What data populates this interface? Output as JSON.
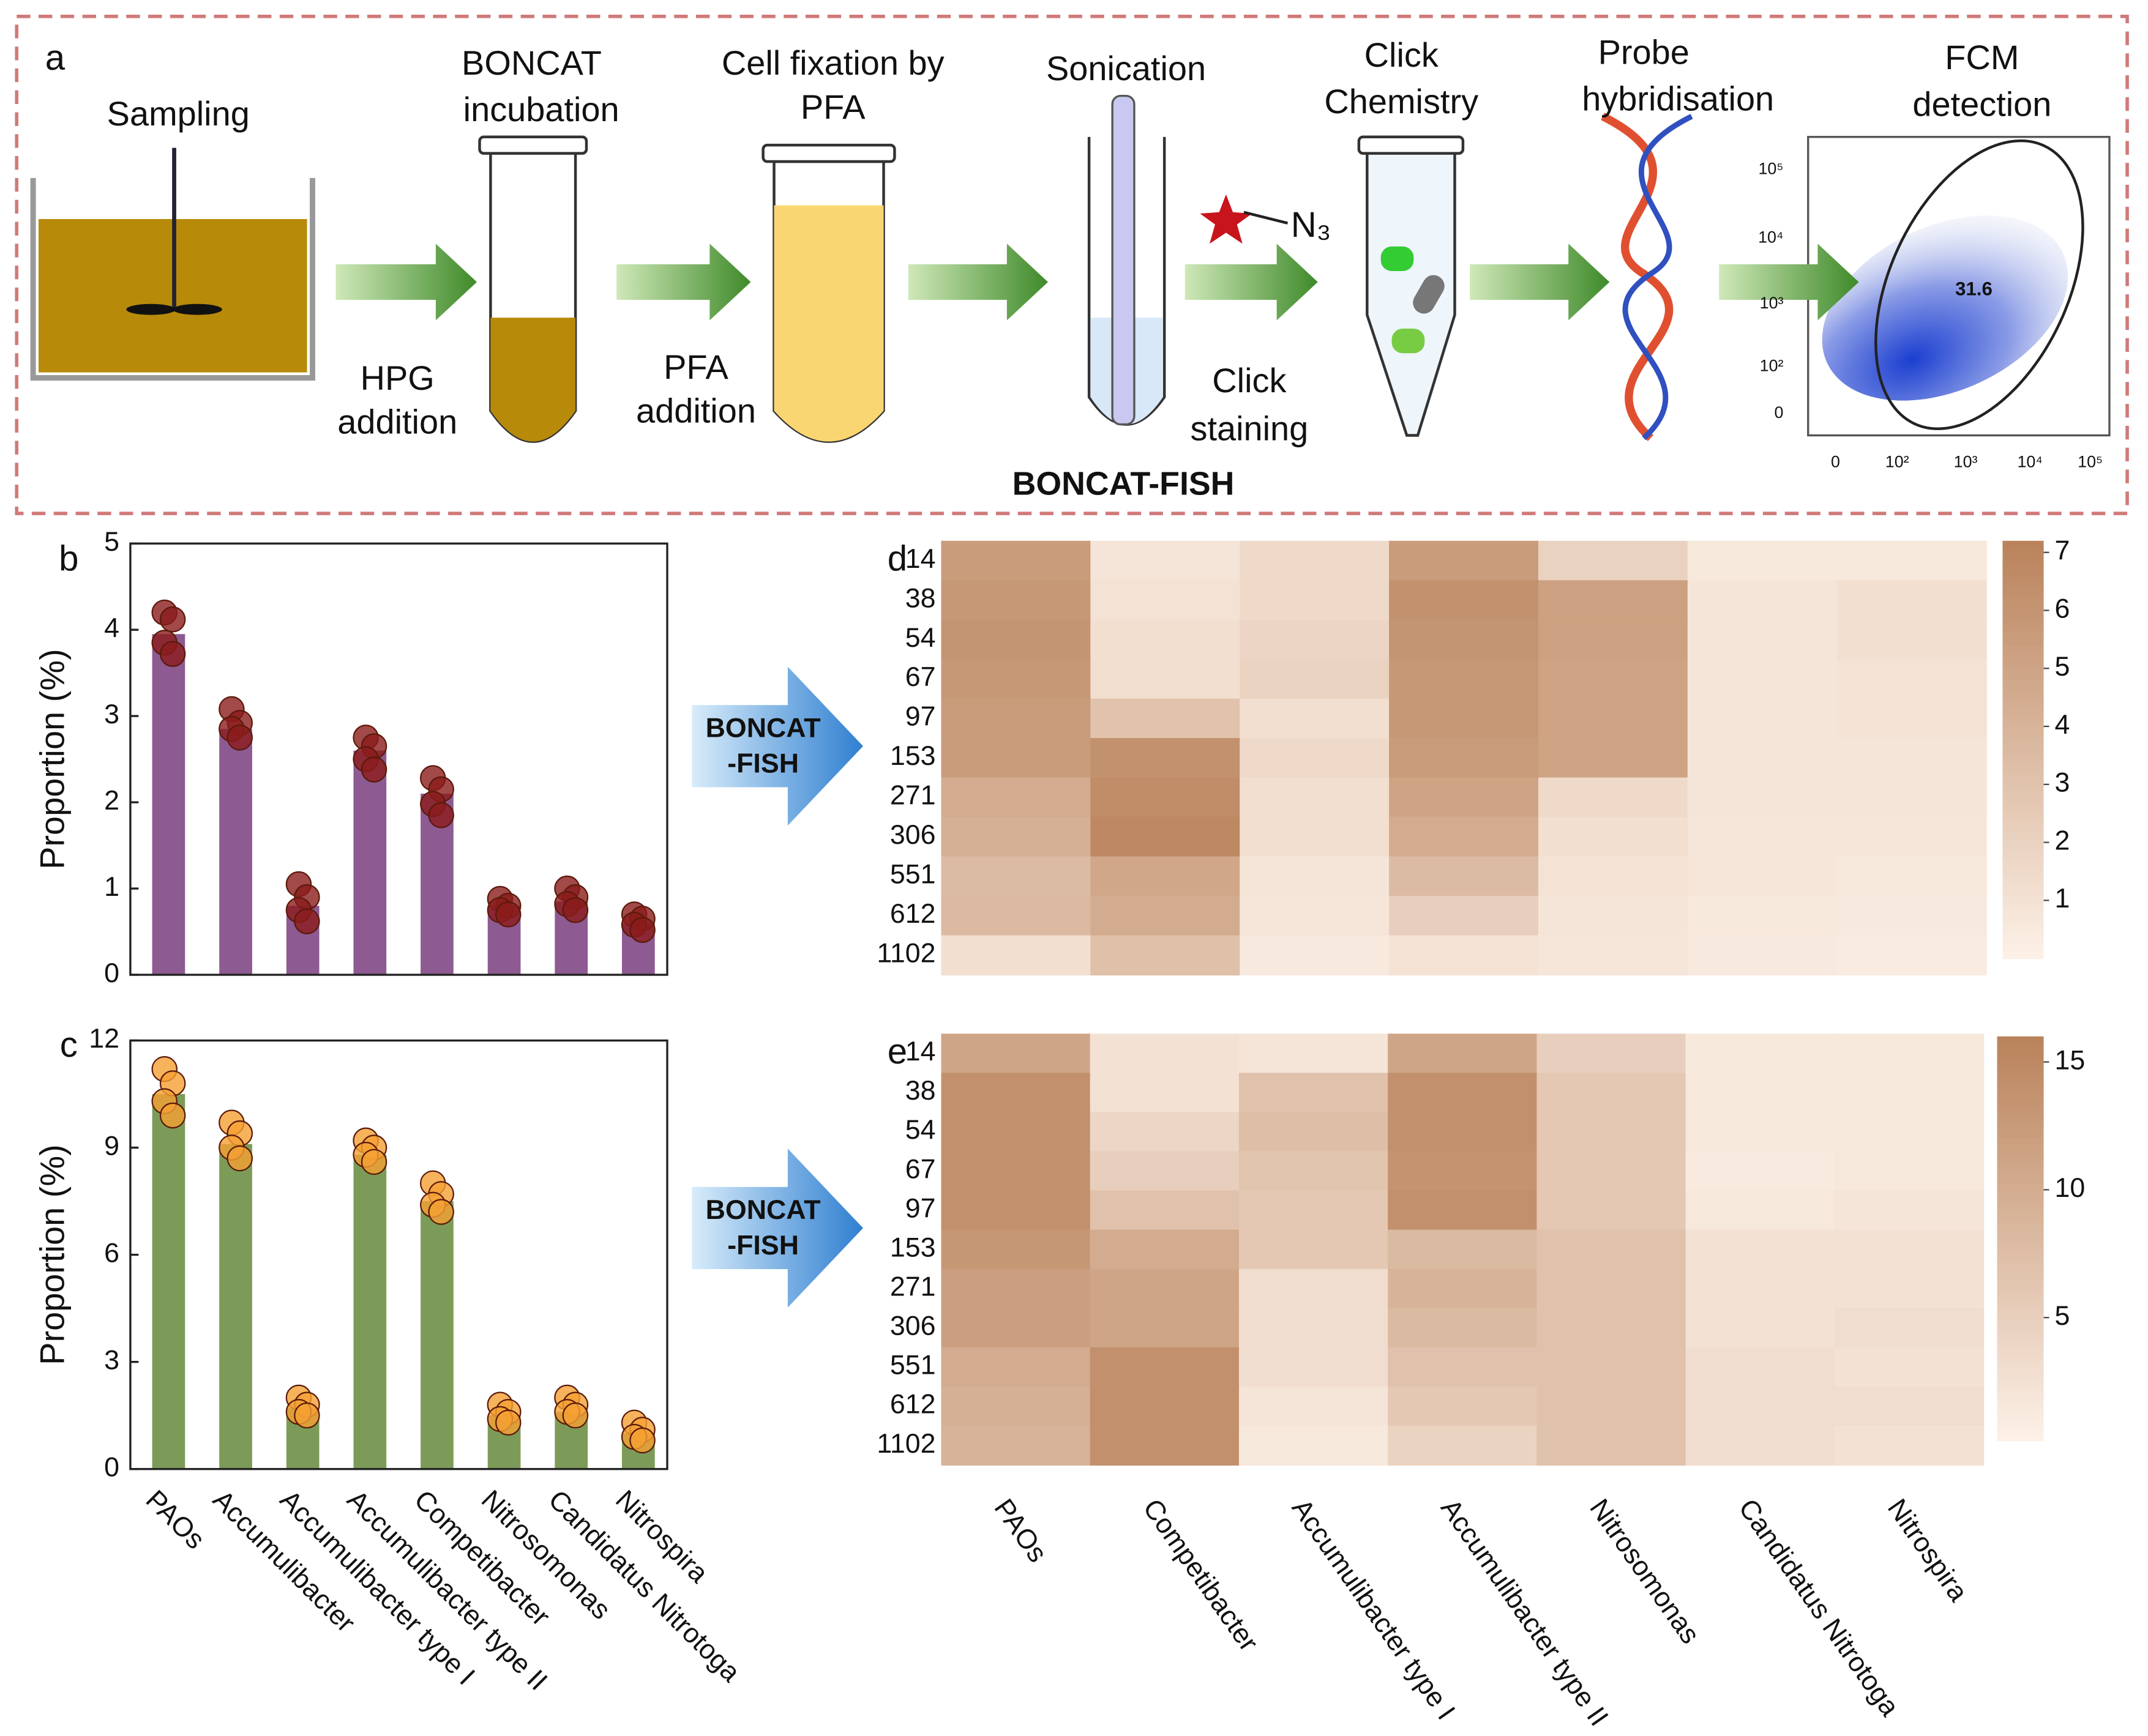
{
  "panel_a": {
    "letter": "a",
    "steps": [
      {
        "label": [
          "Sampling"
        ]
      },
      {
        "label": [
          "BONCAT",
          "incubation"
        ]
      },
      {
        "label": [
          "Cell fixation by",
          "PFA"
        ]
      },
      {
        "label": [
          "Sonication"
        ]
      },
      {
        "label": [
          "Click",
          "Chemistry"
        ]
      },
      {
        "label": [
          "Probe",
          "hybridisation"
        ]
      },
      {
        "label": [
          "FCM",
          "detection"
        ]
      }
    ],
    "arrow_labels": [
      {
        "label": [
          "HPG",
          "addition"
        ]
      },
      {
        "label": [
          "PFA",
          "addition"
        ]
      },
      {
        "label": [
          "Click",
          "staining"
        ]
      }
    ],
    "reagent": "N₃",
    "footer": "BONCAT-FISH",
    "fcm": {
      "gate_value": "31.6",
      "yticks": [
        "10⁵",
        "10⁴",
        "10³",
        "10²",
        "0"
      ],
      "xticks": [
        "0",
        "10²",
        "10³",
        "10⁴",
        "10⁵"
      ]
    }
  },
  "arrows": [
    {
      "label": [
        "BONCAT",
        "-FISH"
      ]
    },
    {
      "label": [
        "BONCAT",
        "-FISH"
      ]
    }
  ],
  "chart_data": [
    {
      "type": "bar",
      "panel": "b",
      "ylabel": "Proportion (%)",
      "values": [
        3.95,
        2.85,
        0.8,
        2.6,
        2.1,
        0.8,
        0.85,
        0.6
      ],
      "points": [
        [
          4.2,
          4.12,
          3.85,
          3.72
        ],
        [
          3.08,
          2.92,
          2.85,
          2.75
        ],
        [
          1.05,
          0.9,
          0.75,
          0.62
        ],
        [
          2.75,
          2.65,
          2.5,
          2.38
        ],
        [
          2.28,
          2.15,
          1.98,
          1.85
        ],
        [
          0.88,
          0.8,
          0.75,
          0.7
        ],
        [
          1.0,
          0.9,
          0.82,
          0.75
        ],
        [
          0.7,
          0.65,
          0.58,
          0.52
        ]
      ],
      "color": "#8d5a91",
      "point_color": "#8b1c1c",
      "ylim": [
        0,
        5
      ],
      "yticks": [
        0,
        1,
        2,
        3,
        4,
        5
      ]
    },
    {
      "type": "bar",
      "panel": "c",
      "ylabel": "Proportion (%)",
      "categories": [
        "PAOs",
        "Accumulibacter",
        "Accumulibacter type I",
        "Accumulibacter type II",
        "Competibacter",
        "Nitrosomonas",
        "Candidatus Nitrotoga",
        "Nitrospira"
      ],
      "values": [
        10.5,
        9.1,
        1.7,
        8.8,
        7.5,
        1.5,
        1.6,
        1.0
      ],
      "points": [
        [
          11.2,
          10.8,
          10.3,
          9.9
        ],
        [
          9.7,
          9.4,
          9.0,
          8.7
        ],
        [
          2.0,
          1.8,
          1.6,
          1.5
        ],
        [
          9.2,
          9.0,
          8.8,
          8.6
        ],
        [
          8.0,
          7.7,
          7.4,
          7.2
        ],
        [
          1.8,
          1.6,
          1.4,
          1.3
        ],
        [
          2.0,
          1.8,
          1.6,
          1.5
        ],
        [
          1.3,
          1.1,
          0.9,
          0.8
        ]
      ],
      "color": "#7c9b58",
      "point_color": "#f5a033",
      "ylim": [
        0,
        12
      ],
      "yticks": [
        0,
        3,
        6,
        9,
        12
      ]
    },
    {
      "type": "heatmap",
      "panel": "d",
      "rows": [
        "14",
        "38",
        "54",
        "67",
        "97",
        "153",
        "271",
        "306",
        "551",
        "612",
        "1102"
      ],
      "values": [
        [
          5.5,
          0.8,
          1.5,
          5.5,
          2.0,
          0.6,
          0.6
        ],
        [
          5.8,
          1.0,
          1.5,
          6.2,
          5.2,
          0.8,
          1.2
        ],
        [
          6.0,
          1.2,
          1.8,
          6.0,
          5.2,
          0.8,
          1.2
        ],
        [
          5.8,
          1.2,
          2.0,
          5.8,
          5.0,
          0.8,
          1.0
        ],
        [
          5.6,
          3.0,
          1.2,
          5.8,
          5.0,
          0.8,
          1.0
        ],
        [
          5.5,
          6.2,
          1.5,
          5.6,
          5.0,
          0.8,
          0.8
        ],
        [
          4.5,
          6.5,
          1.2,
          5.0,
          1.5,
          0.8,
          0.8
        ],
        [
          4.2,
          6.8,
          1.2,
          4.5,
          1.2,
          0.7,
          0.7
        ],
        [
          3.5,
          4.8,
          0.8,
          3.5,
          1.0,
          0.7,
          0.6
        ],
        [
          3.6,
          4.5,
          0.7,
          2.2,
          0.8,
          0.6,
          0.5
        ],
        [
          1.2,
          3.2,
          0.5,
          1.0,
          0.7,
          0.5,
          0.4
        ]
      ],
      "clim": [
        0,
        7.2
      ],
      "cticks": [
        1,
        2,
        3,
        4,
        5,
        6,
        7
      ],
      "cmap": [
        "#fdf1e8",
        "#b9825a"
      ]
    },
    {
      "type": "heatmap",
      "panel": "e",
      "rows": [
        "14",
        "38",
        "54",
        "67",
        "97",
        "153",
        "271",
        "306",
        "551",
        "612",
        "1102"
      ],
      "columns": [
        "PAOs",
        "Competibacter",
        "Accumulibacter type I",
        "Accumulibacter type II",
        "Nitrosomonas",
        "Candidatus Nitrotoga",
        "Nitrospira"
      ],
      "values": [
        [
          11,
          2.5,
          2,
          11,
          5,
          1.5,
          1.5
        ],
        [
          14,
          2.5,
          7,
          14,
          6,
          1.5,
          1.5
        ],
        [
          14,
          4,
          7.5,
          14,
          6,
          1.5,
          1.5
        ],
        [
          14,
          5,
          6.5,
          13.5,
          6,
          1.2,
          1.5
        ],
        [
          14,
          7,
          6,
          14,
          6,
          1.5,
          2
        ],
        [
          13,
          10,
          6,
          8,
          7,
          2.5,
          2.5
        ],
        [
          12,
          11,
          3,
          9,
          7,
          2.5,
          2.5
        ],
        [
          12,
          11,
          3,
          8,
          7,
          2.5,
          3
        ],
        [
          10,
          14,
          3,
          7,
          7,
          3,
          2.5
        ],
        [
          9.5,
          14,
          2,
          6,
          7,
          3,
          3
        ],
        [
          9,
          14,
          1.5,
          4.5,
          7,
          3,
          2.5
        ]
      ],
      "clim": [
        0.2,
        16
      ],
      "cticks": [
        5,
        10,
        15
      ],
      "cmap": [
        "#fdf1e8",
        "#b9825a"
      ]
    }
  ]
}
